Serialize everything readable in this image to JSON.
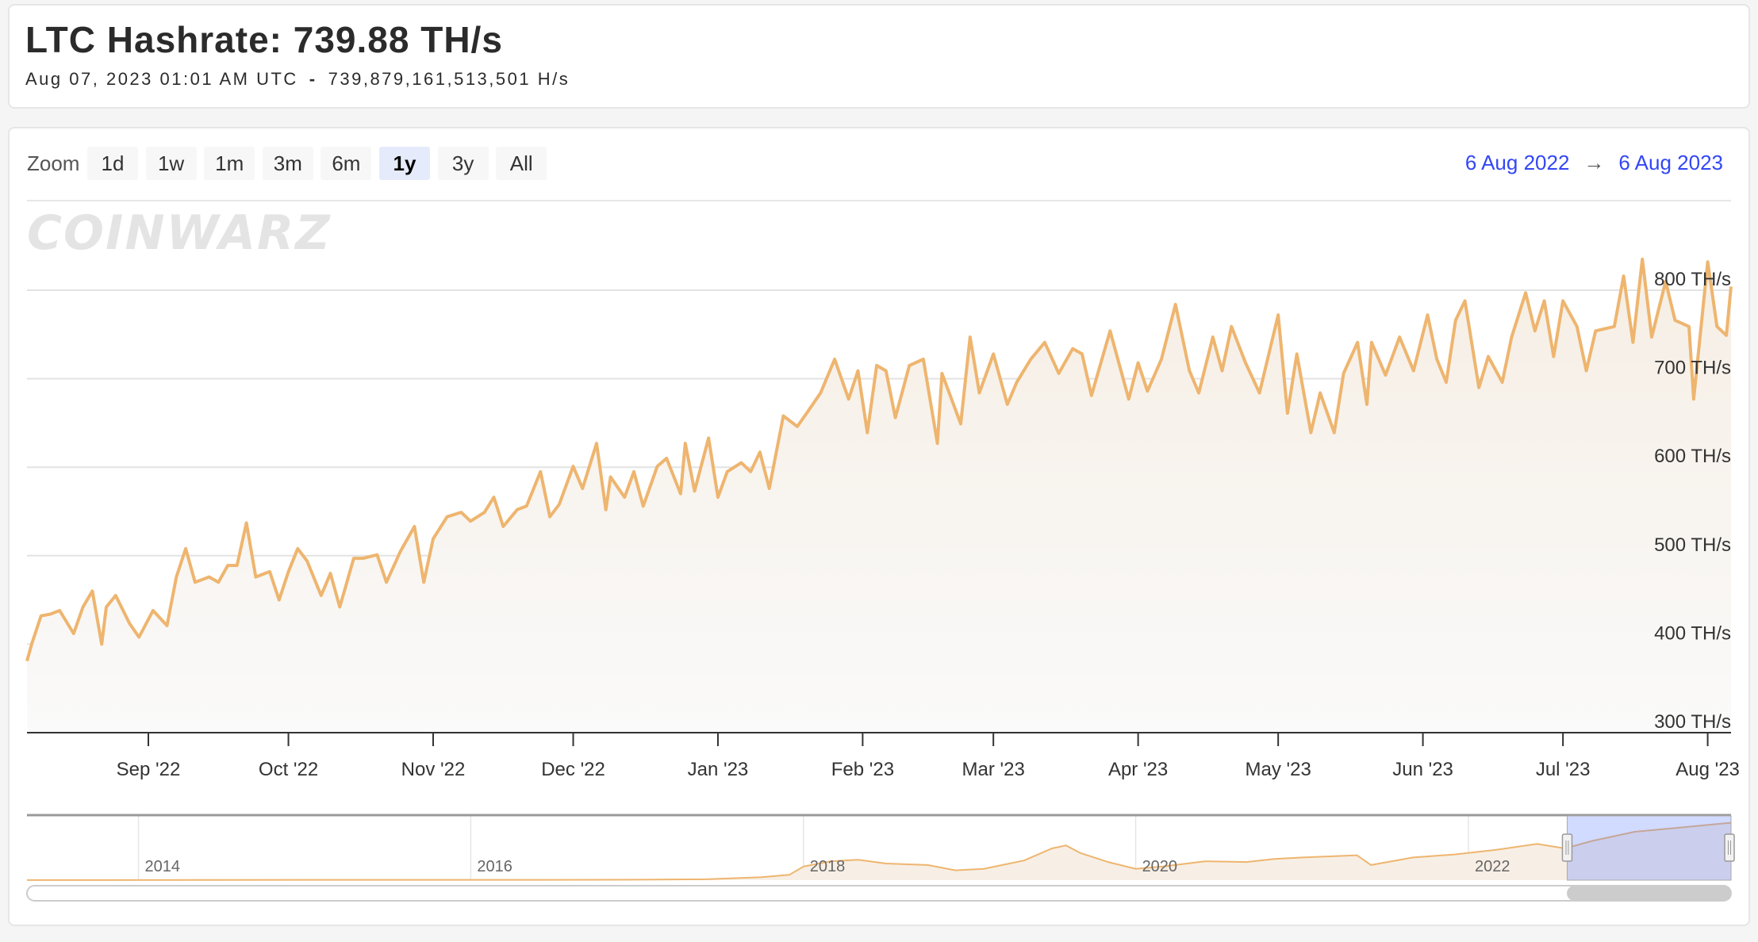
{
  "header": {
    "title": "LTC Hashrate: 739.88 TH/s",
    "timestamp": "Aug 07, 2023 01:01 AM UTC",
    "separator": "-",
    "raw_value": "739,879,161,513,501 H/s"
  },
  "toolbar": {
    "zoom_label": "Zoom",
    "buttons": [
      "1d",
      "1w",
      "1m",
      "3m",
      "6m",
      "1y",
      "3y",
      "All"
    ],
    "selected": "1y",
    "range_from": "6 Aug 2022",
    "range_arrow": "→",
    "range_to": "6 Aug 2023"
  },
  "watermark": "COINWARZ",
  "colors": {
    "line": "#EEB56F",
    "fill": "#F7F0E8",
    "range_text": "#3347F5",
    "selected_button": "#E6EBFB",
    "navigator_mask": "#6685FF"
  },
  "chart_data": {
    "type": "area",
    "title": "",
    "xlabel": "",
    "ylabel": "",
    "x_range": [
      "2022-08-06",
      "2023-08-06"
    ],
    "ylim": [
      300,
      800
    ],
    "y_ticks": [
      300,
      400,
      500,
      600,
      700,
      800
    ],
    "y_tick_labels": [
      "300 TH/s",
      "400 TH/s",
      "500 TH/s",
      "600 TH/s",
      "700 TH/s",
      "800 TH/s"
    ],
    "x_ticks": [
      "2022-09-01",
      "2022-10-01",
      "2022-11-01",
      "2022-12-01",
      "2023-01-01",
      "2023-02-01",
      "2023-03-01",
      "2023-04-01",
      "2023-05-01",
      "2023-06-01",
      "2023-07-01",
      "2023-08-01"
    ],
    "x_tick_labels": [
      "Sep '22",
      "Oct '22",
      "Nov '22",
      "Dec '22",
      "Jan '23",
      "Feb '23",
      "Mar '23",
      "Apr '23",
      "May '23",
      "Jun '23",
      "Jul '23",
      "Aug '23"
    ],
    "grid": true,
    "series": [
      {
        "x": [
          "2022-08-06",
          "2022-08-07",
          "2022-08-09",
          "2022-08-11",
          "2022-08-13",
          "2022-08-16",
          "2022-08-18",
          "2022-08-20",
          "2022-08-22",
          "2022-08-23",
          "2022-08-25",
          "2022-08-28",
          "2022-08-30",
          "2022-09-02",
          "2022-09-05",
          "2022-09-07",
          "2022-09-09",
          "2022-09-11",
          "2022-09-14",
          "2022-09-16",
          "2022-09-18",
          "2022-09-20",
          "2022-09-22",
          "2022-09-24",
          "2022-09-27",
          "2022-09-29",
          "2022-10-01",
          "2022-10-03",
          "2022-10-05",
          "2022-10-08",
          "2022-10-10",
          "2022-10-12",
          "2022-10-15",
          "2022-10-17",
          "2022-10-20",
          "2022-10-22",
          "2022-10-25",
          "2022-10-28",
          "2022-10-30",
          "2022-11-01",
          "2022-11-04",
          "2022-11-07",
          "2022-11-09",
          "2022-11-12",
          "2022-11-14",
          "2022-11-16",
          "2022-11-19",
          "2022-11-21",
          "2022-11-24",
          "2022-11-26",
          "2022-11-28",
          "2022-12-01",
          "2022-12-03",
          "2022-12-06",
          "2022-12-08",
          "2022-12-09",
          "2022-12-12",
          "2022-12-14",
          "2022-12-16",
          "2022-12-19",
          "2022-12-21",
          "2022-12-24",
          "2022-12-25",
          "2022-12-27",
          "2022-12-30",
          "2023-01-01",
          "2023-01-03",
          "2023-01-06",
          "2023-01-08",
          "2023-01-10",
          "2023-01-12",
          "2023-01-15",
          "2023-01-18",
          "2023-01-20",
          "2023-01-23",
          "2023-01-26",
          "2023-01-29",
          "2023-01-31",
          "2023-02-02",
          "2023-02-04",
          "2023-02-06",
          "2023-02-08",
          "2023-02-11",
          "2023-02-14",
          "2023-02-17",
          "2023-02-18",
          "2023-02-22",
          "2023-02-24",
          "2023-02-26",
          "2023-03-01",
          "2023-03-04",
          "2023-03-06",
          "2023-03-09",
          "2023-03-12",
          "2023-03-15",
          "2023-03-18",
          "2023-03-20",
          "2023-03-22",
          "2023-03-26",
          "2023-03-30",
          "2023-04-01",
          "2023-04-03",
          "2023-04-06",
          "2023-04-09",
          "2023-04-12",
          "2023-04-14",
          "2023-04-17",
          "2023-04-19",
          "2023-04-21",
          "2023-04-24",
          "2023-04-27",
          "2023-05-01",
          "2023-05-03",
          "2023-05-05",
          "2023-05-08",
          "2023-05-10",
          "2023-05-13",
          "2023-05-15",
          "2023-05-18",
          "2023-05-20",
          "2023-05-21",
          "2023-05-24",
          "2023-05-27",
          "2023-05-30",
          "2023-06-02",
          "2023-06-04",
          "2023-06-06",
          "2023-06-08",
          "2023-06-10",
          "2023-06-13",
          "2023-06-15",
          "2023-06-18",
          "2023-06-20",
          "2023-06-23",
          "2023-06-25",
          "2023-06-27",
          "2023-06-29",
          "2023-07-01",
          "2023-07-04",
          "2023-07-06",
          "2023-07-08",
          "2023-07-12",
          "2023-07-14",
          "2023-07-16",
          "2023-07-18",
          "2023-07-20",
          "2023-07-23",
          "2023-07-25",
          "2023-07-28",
          "2023-07-29",
          "2023-08-01",
          "2023-08-03",
          "2023-08-05",
          "2023-08-06"
        ],
        "values": [
          381,
          400,
          432,
          434,
          438,
          412,
          442,
          460,
          400,
          442,
          455,
          423,
          408,
          438,
          421,
          476,
          508,
          470,
          476,
          470,
          489,
          489,
          537,
          476,
          482,
          450,
          482,
          508,
          494,
          455,
          480,
          442,
          497,
          497,
          501,
          470,
          505,
          533,
          470,
          519,
          544,
          549,
          539,
          549,
          566,
          533,
          552,
          556,
          595,
          544,
          558,
          601,
          576,
          627,
          552,
          589,
          566,
          595,
          556,
          601,
          610,
          570,
          627,
          573,
          633,
          566,
          595,
          605,
          595,
          617,
          576,
          658,
          646,
          661,
          684,
          722,
          677,
          709,
          639,
          715,
          709,
          656,
          715,
          722,
          627,
          706,
          649,
          747,
          684,
          728,
          671,
          696,
          722,
          741,
          706,
          734,
          728,
          681,
          754,
          677,
          718,
          686,
          722,
          784,
          709,
          684,
          747,
          709,
          759,
          718,
          684,
          772,
          661,
          728,
          639,
          684,
          639,
          706,
          741,
          671,
          741,
          704,
          747,
          709,
          772,
          722,
          696,
          766,
          788,
          690,
          725,
          696,
          747,
          797,
          754,
          788,
          725,
          788,
          759,
          709,
          754,
          759,
          816,
          741,
          835,
          747,
          810,
          766,
          759,
          677,
          832,
          759,
          749,
          804
        ]
      }
    ]
  },
  "navigator": {
    "year_labels": [
      "2014",
      "2016",
      "2018",
      "2020",
      "2022"
    ],
    "x_range": [
      "2013-05",
      "2023-08"
    ],
    "selected_range": [
      "2022-08-06",
      "2023-08-06"
    ],
    "series": {
      "x": [
        "2013-05",
        "2014-06",
        "2015-06",
        "2016-06",
        "2017-01",
        "2017-06",
        "2017-10",
        "2017-12",
        "2018-01",
        "2018-03",
        "2018-05",
        "2018-07",
        "2018-10",
        "2018-12",
        "2019-02",
        "2019-05",
        "2019-07",
        "2019-08",
        "2019-09",
        "2019-11",
        "2020-01",
        "2020-03",
        "2020-06",
        "2020-09",
        "2020-11",
        "2021-01",
        "2021-05",
        "2021-06",
        "2021-09",
        "2021-12",
        "2022-03",
        "2022-06",
        "2022-08",
        "2022-10",
        "2023-01",
        "2023-04",
        "2023-08"
      ],
      "values": [
        1,
        3,
        4,
        4,
        6,
        12,
        40,
        70,
        180,
        250,
        270,
        220,
        200,
        130,
        150,
        260,
        420,
        460,
        360,
        240,
        150,
        180,
        250,
        240,
        280,
        300,
        330,
        200,
        300,
        340,
        400,
        480,
        420,
        520,
        640,
        690,
        760
      ]
    }
  }
}
